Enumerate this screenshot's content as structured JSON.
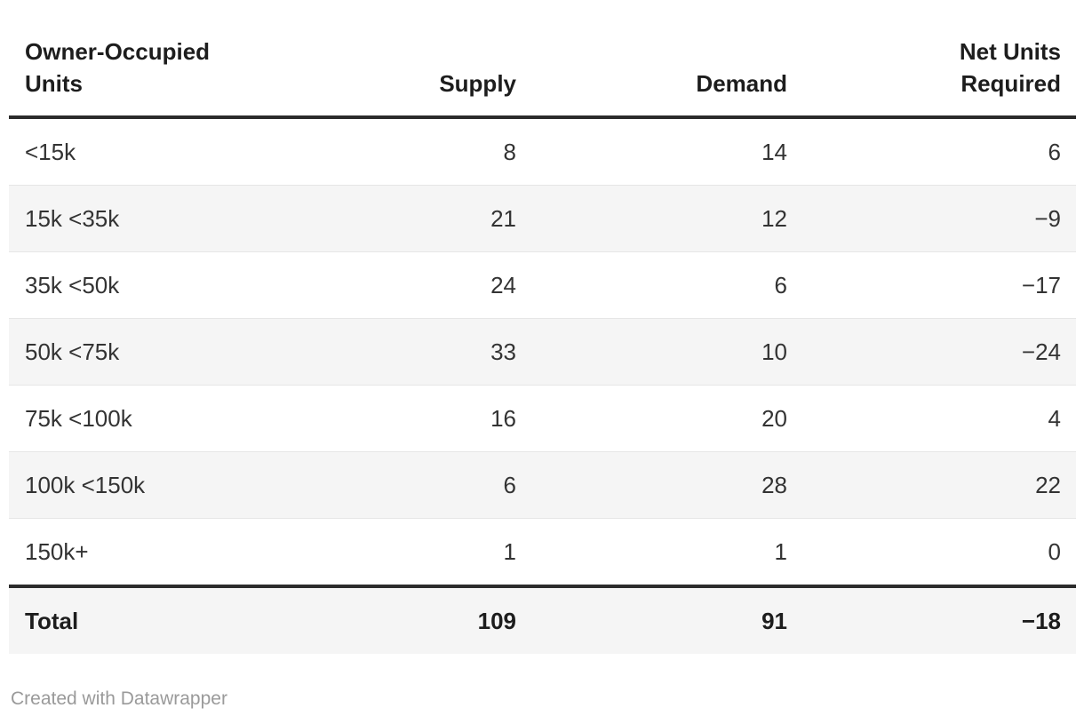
{
  "chart_data": {
    "type": "table",
    "columns": [
      "Owner-Occupied Units",
      "Supply",
      "Demand",
      "Net Units Required"
    ],
    "rows": [
      [
        "<15k",
        8,
        14,
        6
      ],
      [
        "15k <35k",
        21,
        12,
        -9
      ],
      [
        "35k <50k",
        24,
        6,
        -17
      ],
      [
        "50k <75k",
        33,
        10,
        -24
      ],
      [
        "75k <100k",
        16,
        20,
        4
      ],
      [
        "100k <150k",
        6,
        28,
        22
      ],
      [
        "150k+",
        1,
        1,
        0
      ]
    ],
    "total_row": [
      "Total",
      109,
      91,
      -18
    ],
    "layout_hints": {
      "zebra_striping": true,
      "numeric_columns_right_aligned": true,
      "thick_rule_below_header_and_above_total": true
    }
  },
  "table": {
    "header": {
      "col0": "Owner-Occupied Units",
      "col1": "Supply",
      "col2": "Demand",
      "col3": "Net Units Required"
    },
    "rows": [
      {
        "label": "<15k",
        "supply": "8",
        "demand": "14",
        "net": "6"
      },
      {
        "label": "15k <35k",
        "supply": "21",
        "demand": "12",
        "net": "−9"
      },
      {
        "label": "35k <50k",
        "supply": "24",
        "demand": "6",
        "net": "−17"
      },
      {
        "label": "50k <75k",
        "supply": "33",
        "demand": "10",
        "net": "−24"
      },
      {
        "label": "75k <100k",
        "supply": "16",
        "demand": "20",
        "net": "4"
      },
      {
        "label": "100k <150k",
        "supply": "6",
        "demand": "28",
        "net": "22"
      },
      {
        "label": "150k+",
        "supply": "1",
        "demand": "1",
        "net": "0"
      }
    ],
    "total": {
      "label": "Total",
      "supply": "109",
      "demand": "91",
      "net": "−18"
    }
  },
  "footer": {
    "credit": "Created with Datawrapper"
  },
  "colors": {
    "body_text": "#333333",
    "heading_text": "#1d1d1d",
    "row_alt_bg": "#f5f5f5",
    "row_separator": "#e6e6e6",
    "thick_rule": "#2b2b2b",
    "credit_text": "#9a9a9a",
    "background": "#ffffff"
  }
}
